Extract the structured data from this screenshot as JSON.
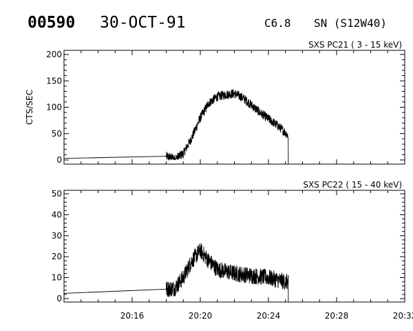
{
  "header": {
    "event_id": "00590",
    "date": "30-OCT-91",
    "flare_class": "C6.8",
    "location": "SN (S12W40)"
  },
  "chart_data": [
    {
      "type": "line",
      "title": "SXS PC21  (  3 - 15 keV)",
      "ylabel": "CTS/SEC",
      "xlabel": "",
      "xlim": [
        "20:12:00",
        "20:32:00"
      ],
      "ylim": [
        0,
        200
      ],
      "y_ticks": [
        "0",
        "50",
        "100",
        "150",
        "200"
      ],
      "x_ticks": [
        "20:16",
        "20:20",
        "20:24",
        "20:28",
        "20:32"
      ],
      "x_tick_labels_shown": false,
      "series": [
        {
          "x": [
            "20:12:00",
            "20:18:00",
            "20:18:30",
            "20:19:00",
            "20:19:30",
            "20:20:00",
            "20:20:30",
            "20:21:00",
            "20:21:30",
            "20:22:00",
            "20:22:30",
            "20:23:00",
            "20:23:30",
            "20:24:00",
            "20:24:30",
            "20:25:00",
            "20:25:10"
          ],
          "y": [
            3,
            7,
            2,
            12,
            42,
            80,
            108,
            120,
            124,
            126,
            118,
            104,
            90,
            78,
            66,
            52,
            45
          ],
          "noise": 9
        }
      ]
    },
    {
      "type": "line",
      "title": "SXS PC22  ( 15 - 40 keV)",
      "ylabel": "",
      "xlabel": "",
      "xlim": [
        "20:12:00",
        "20:32:00"
      ],
      "ylim": [
        0,
        50
      ],
      "y_ticks": [
        "0",
        "10",
        "20",
        "30",
        "40",
        "50"
      ],
      "x_ticks": [
        "20:16",
        "20:20",
        "20:24",
        "20:28",
        "20:32"
      ],
      "x_tick_labels_shown": true,
      "series": [
        {
          "x": [
            "20:12:00",
            "20:18:00",
            "20:18:30",
            "20:19:00",
            "20:19:30",
            "20:20:00",
            "20:20:30",
            "20:21:00",
            "20:22:00",
            "20:23:00",
            "20:24:00",
            "20:25:00",
            "20:25:10"
          ],
          "y": [
            2.5,
            4.5,
            5,
            10,
            18,
            23,
            18,
            14,
            12,
            11,
            10,
            8,
            8
          ],
          "noise": 4
        }
      ]
    }
  ]
}
